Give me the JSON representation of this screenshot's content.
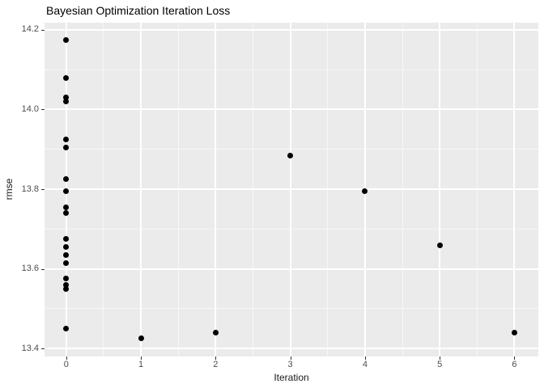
{
  "chart_data": {
    "type": "scatter",
    "title": "Bayesian Optimization Iteration Loss",
    "xlabel": "Iteration",
    "ylabel": "rmse",
    "xlim": [
      -0.29,
      6.32
    ],
    "ylim": [
      13.38,
      14.218
    ],
    "grid": true,
    "legend": "none",
    "x_ticks": {
      "values": [
        0,
        1,
        2,
        3,
        4,
        5,
        6
      ],
      "labels": [
        "0",
        "1",
        "2",
        "3",
        "4",
        "5",
        "6"
      ]
    },
    "y_ticks": {
      "values": [
        13.4,
        13.6,
        13.8,
        14.0,
        14.2
      ],
      "labels": [
        "13.4",
        "13.6",
        "13.8",
        "14.0",
        "14.2"
      ]
    },
    "x_minor": [
      0.5,
      1.5,
      2.5,
      3.5,
      4.5,
      5.5
    ],
    "y_minor": [
      13.5,
      13.7,
      13.9,
      14.1
    ],
    "points": [
      {
        "x": 0,
        "y": 14.175
      },
      {
        "x": 0,
        "y": 14.08
      },
      {
        "x": 0,
        "y": 14.03
      },
      {
        "x": 0,
        "y": 14.02
      },
      {
        "x": 0,
        "y": 13.925
      },
      {
        "x": 0,
        "y": 13.905
      },
      {
        "x": 0,
        "y": 13.825
      },
      {
        "x": 0,
        "y": 13.795
      },
      {
        "x": 0,
        "y": 13.755
      },
      {
        "x": 0,
        "y": 13.74
      },
      {
        "x": 0,
        "y": 13.675
      },
      {
        "x": 0,
        "y": 13.655
      },
      {
        "x": 0,
        "y": 13.635
      },
      {
        "x": 0,
        "y": 13.615
      },
      {
        "x": 0,
        "y": 13.575
      },
      {
        "x": 0,
        "y": 13.56
      },
      {
        "x": 0,
        "y": 13.55
      },
      {
        "x": 0,
        "y": 13.45
      },
      {
        "x": 1,
        "y": 13.425
      },
      {
        "x": 2,
        "y": 13.44
      },
      {
        "x": 3,
        "y": 13.885
      },
      {
        "x": 4,
        "y": 13.795
      },
      {
        "x": 5,
        "y": 13.66
      },
      {
        "x": 6,
        "y": 13.44
      }
    ]
  },
  "style": {
    "background": "#FFFFFF",
    "panel_bg": "#EBEBEB",
    "grid_color": "#FFFFFF",
    "point_color": "#000000",
    "tick_label_color": "#4D4D4D",
    "tick_mark_color": "#333333",
    "title_color": "#000000",
    "axis_title_color": "#1A1A1A"
  }
}
